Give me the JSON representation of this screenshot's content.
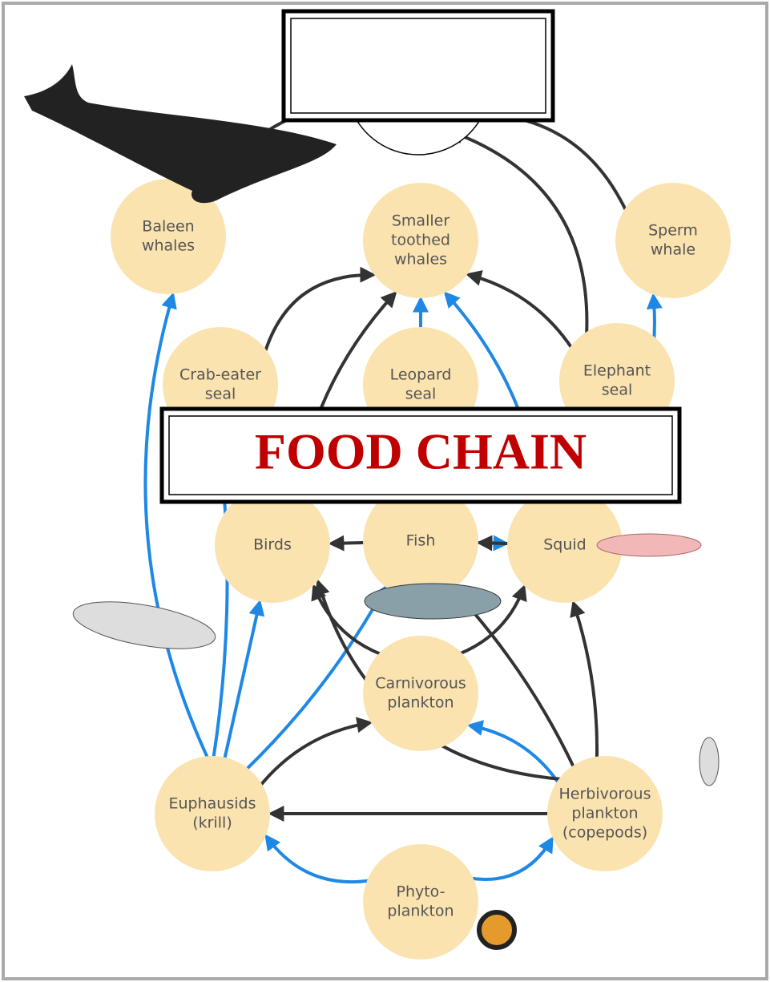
{
  "title": "FOOD CHAIN",
  "nodes": [
    {
      "lines": [
        "Baleen",
        "whales"
      ]
    },
    {
      "lines": [
        "Smaller",
        "toothed",
        "whales"
      ]
    },
    {
      "lines": [
        "Sperm",
        "whale"
      ]
    },
    {
      "lines": [
        "Crab-eater",
        "seal"
      ]
    },
    {
      "lines": [
        "Leopard",
        "seal"
      ]
    },
    {
      "lines": [
        "Elephant",
        "seal"
      ]
    },
    {
      "lines": [
        "Birds"
      ]
    },
    {
      "lines": [
        "Fish"
      ]
    },
    {
      "lines": [
        "Squid"
      ]
    },
    {
      "lines": [
        "Carnivorous",
        "plankton"
      ]
    },
    {
      "lines": [
        "Euphausids",
        "(krill)"
      ]
    },
    {
      "lines": [
        "Herbivorous",
        "plankton",
        "(copepods)"
      ]
    },
    {
      "lines": [
        "Phyto-",
        "plankton"
      ]
    }
  ]
}
